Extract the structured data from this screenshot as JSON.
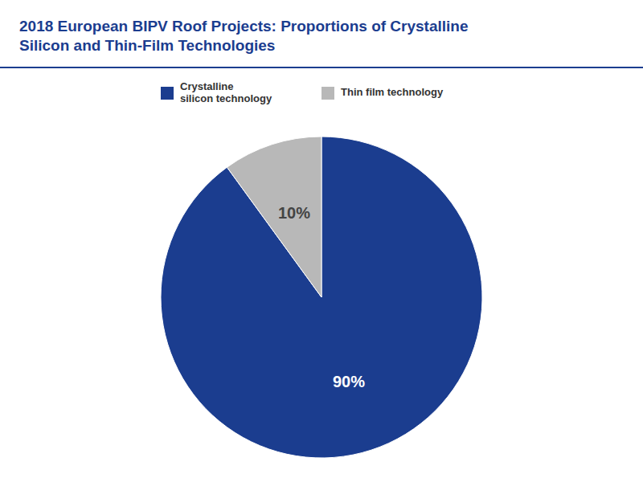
{
  "chart_data": {
    "type": "pie",
    "title": "2018 European BIPV Roof Projects: Proportions of Crystalline\nSilicon and Thin-Film Technologies",
    "categories": [
      "Crystalline\nsilicon technology",
      "Thin film technology"
    ],
    "values": [
      90,
      10
    ],
    "value_labels": [
      "90%",
      "10%"
    ],
    "colors": [
      "#1b3d8f",
      "#b8b8b8"
    ],
    "data_labels": true,
    "legend": "top"
  }
}
